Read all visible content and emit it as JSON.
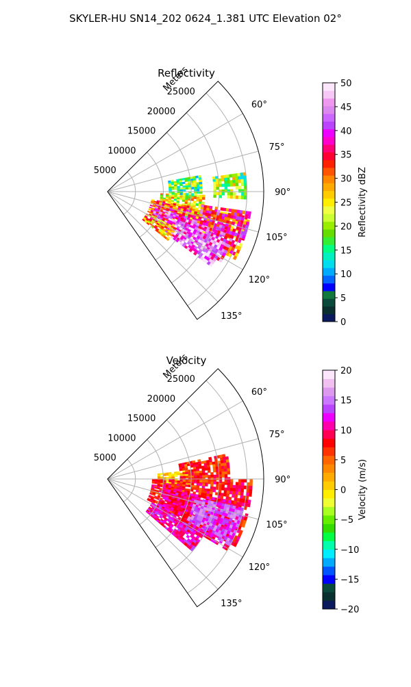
{
  "suptitle": "SKYLER-HU  SN14_202  0624_1.381 UTC Elevation 02°",
  "chart_data": [
    {
      "type": "heatmap",
      "projection": "polar-sector",
      "title": "Reflectivity",
      "range_label": "Meters",
      "range_ticks": [
        5000,
        10000,
        15000,
        20000,
        25000
      ],
      "range_lim": [
        0,
        28000
      ],
      "azimuth_ticks": [
        "60°",
        "75°",
        "90°",
        "105°",
        "120°",
        "135°"
      ],
      "azimuth_tick_values": [
        60,
        75,
        90,
        105,
        120,
        135
      ],
      "azimuth_lim": [
        45,
        145
      ],
      "grid": true,
      "colorbar": {
        "label": "Reflectivity dBZ",
        "vmin": 0,
        "vmax": 50,
        "ticks": [
          "0",
          "5",
          "10",
          "15",
          "20",
          "25",
          "30",
          "35",
          "40",
          "45",
          "50"
        ],
        "tick_values": [
          0,
          5,
          10,
          15,
          20,
          25,
          30,
          35,
          40,
          45,
          50
        ],
        "colormap": [
          "#0a1a5c",
          "#0a2f2f",
          "#0a4a3a",
          "#10783a",
          "#0000ff",
          "#0066ff",
          "#00aaff",
          "#00ddee",
          "#00f0c0",
          "#00ff80",
          "#33ee33",
          "#66dd00",
          "#99ee00",
          "#ccff33",
          "#eeff44",
          "#ffee00",
          "#ffcc00",
          "#ffaa00",
          "#ff8800",
          "#ff5500",
          "#ff2200",
          "#ff0033",
          "#ff0077",
          "#ff00cc",
          "#ee00ff",
          "#bb44ff",
          "#cc66ff",
          "#dd88ee",
          "#ee99ee",
          "#f5c8f5",
          "#fbe6fb"
        ]
      },
      "echo_regions": [
        {
          "az": [
            92,
            110
          ],
          "r": [
            9500,
            17500
          ],
          "value": 24
        },
        {
          "az": [
            80,
            92
          ],
          "r": [
            11000,
            17000
          ],
          "value": 18
        },
        {
          "az": [
            100,
            118
          ],
          "r": [
            8000,
            26000
          ],
          "value": 32
        },
        {
          "az": [
            108,
            122
          ],
          "r": [
            9000,
            24000
          ],
          "value": 40
        },
        {
          "az": [
            112,
            126
          ],
          "r": [
            12000,
            23000
          ],
          "value": 44
        },
        {
          "az": [
            98,
            108
          ],
          "r": [
            17000,
            26000
          ],
          "value": 36
        },
        {
          "az": [
            82,
            92
          ],
          "r": [
            19000,
            25000
          ],
          "value": 20
        },
        {
          "az": [
            118,
            128
          ],
          "r": [
            8000,
            14000
          ],
          "value": 28
        }
      ]
    },
    {
      "type": "heatmap",
      "projection": "polar-sector",
      "title": "Velocity",
      "range_label": "Meters",
      "range_ticks": [
        5000,
        10000,
        15000,
        20000,
        25000
      ],
      "range_lim": [
        0,
        28000
      ],
      "azimuth_ticks": [
        "60°",
        "75°",
        "90°",
        "105°",
        "120°",
        "135°"
      ],
      "azimuth_tick_values": [
        60,
        75,
        90,
        105,
        120,
        135
      ],
      "azimuth_lim": [
        45,
        145
      ],
      "grid": true,
      "colorbar": {
        "label": "Velocity (m/s)",
        "vmin": -20,
        "vmax": 20,
        "ticks": [
          "−20",
          "−15",
          "−10",
          "−5",
          "0",
          "5",
          "10",
          "15",
          "20"
        ],
        "tick_values": [
          -20,
          -15,
          -10,
          -5,
          0,
          5,
          10,
          15,
          20
        ],
        "colormap": [
          "#0a1a5c",
          "#0a2f2f",
          "#0a4a3a",
          "#0000ff",
          "#0055ff",
          "#00aaff",
          "#00eeff",
          "#00ffaa",
          "#00ff44",
          "#33dd00",
          "#66ee00",
          "#aaff22",
          "#eeff33",
          "#ffee00",
          "#ffcc00",
          "#ffaa00",
          "#ff8800",
          "#ff6600",
          "#ff3300",
          "#ff0000",
          "#ff0055",
          "#ff00aa",
          "#ee00ff",
          "#bb44ff",
          "#cc77ff",
          "#dd99ee",
          "#f0c0f0",
          "#fbe6fb"
        ]
      },
      "echo_regions": [
        {
          "az": [
            84,
            95
          ],
          "r": [
            9000,
            15000
          ],
          "value": 1
        },
        {
          "az": [
            90,
            118
          ],
          "r": [
            8000,
            26000
          ],
          "value": 8
        },
        {
          "az": [
            100,
            120
          ],
          "r": [
            10000,
            25000
          ],
          "value": 10
        },
        {
          "az": [
            102,
            118
          ],
          "r": [
            16000,
            25000
          ],
          "value": 14
        },
        {
          "az": [
            118,
            130
          ],
          "r": [
            9000,
            20000
          ],
          "value": 11
        },
        {
          "az": [
            78,
            92
          ],
          "r": [
            13000,
            22000
          ],
          "value": 7
        }
      ]
    }
  ]
}
